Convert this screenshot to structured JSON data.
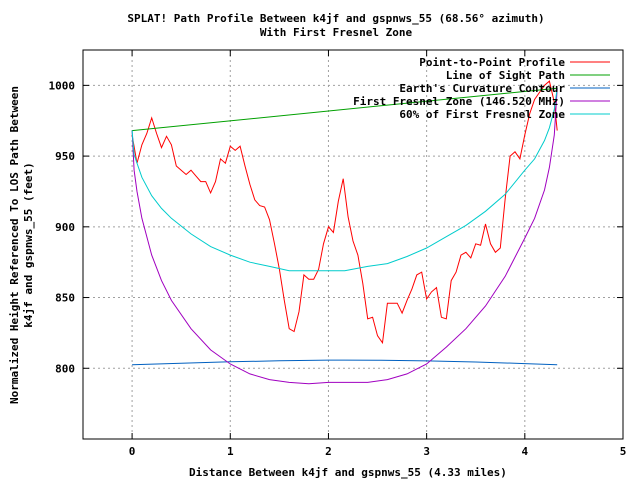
{
  "chart_data": {
    "type": "line",
    "title": "SPLAT! Path Profile Between k4jf and gspnws_55 (68.56° azimuth)",
    "subtitle": "With First Fresnel Zone",
    "xlabel": "Distance Between k4jf and gspnws_55 (4.33 miles)",
    "ylabel_line1": "Normalized Height Referenced To LOS Path Between",
    "ylabel_line2": "k4jf and gspnws_55 (feet)",
    "xlim": [
      -0.5,
      5
    ],
    "ylim": [
      750,
      1025
    ],
    "x_ticks": [
      0,
      1,
      2,
      3,
      4,
      5
    ],
    "y_ticks": [
      800,
      850,
      900,
      950,
      1000
    ],
    "grid": true,
    "legend_position": "top-right",
    "series": [
      {
        "name": "Point-to-Point Profile",
        "color": "#ff0000",
        "x": [
          0.0,
          0.05,
          0.1,
          0.15,
          0.2,
          0.25,
          0.3,
          0.35,
          0.4,
          0.45,
          0.5,
          0.55,
          0.6,
          0.65,
          0.7,
          0.75,
          0.8,
          0.85,
          0.9,
          0.95,
          1.0,
          1.05,
          1.1,
          1.15,
          1.2,
          1.25,
          1.3,
          1.35,
          1.4,
          1.45,
          1.5,
          1.55,
          1.6,
          1.65,
          1.7,
          1.75,
          1.8,
          1.85,
          1.9,
          1.95,
          2.0,
          2.05,
          2.1,
          2.15,
          2.2,
          2.25,
          2.3,
          2.35,
          2.4,
          2.45,
          2.5,
          2.55,
          2.6,
          2.65,
          2.7,
          2.75,
          2.8,
          2.85,
          2.9,
          2.95,
          3.0,
          3.05,
          3.1,
          3.15,
          3.2,
          3.25,
          3.3,
          3.35,
          3.4,
          3.45,
          3.5,
          3.55,
          3.6,
          3.65,
          3.7,
          3.75,
          3.8,
          3.85,
          3.9,
          3.95,
          4.0,
          4.05,
          4.1,
          4.15,
          4.2,
          4.25,
          4.3,
          4.33
        ],
        "y": [
          965,
          945,
          958,
          966,
          977,
          966,
          956,
          964,
          958,
          943,
          940,
          937,
          940,
          936,
          932,
          932,
          924,
          932,
          948,
          945,
          957,
          954,
          957,
          943,
          930,
          919,
          915,
          914,
          905,
          888,
          870,
          848,
          828,
          826,
          840,
          866,
          863,
          863,
          870,
          888,
          900,
          896,
          918,
          934,
          907,
          890,
          880,
          860,
          835,
          836,
          823,
          818,
          846,
          846,
          846,
          839,
          848,
          856,
          866,
          868,
          849,
          854,
          857,
          836,
          835,
          862,
          868,
          880,
          882,
          878,
          888,
          887,
          902,
          888,
          882,
          885,
          920,
          950,
          953,
          948,
          965,
          980,
          990,
          995,
          1000,
          1003,
          988,
          968
        ]
      },
      {
        "name": "Line of Sight Path",
        "color": "#00a000",
        "x": [
          0,
          4.33
        ],
        "y": [
          968,
          998
        ]
      },
      {
        "name": "Earth's Curvature Contour",
        "color": "#0060c0",
        "x": [
          0,
          0.5,
          1.0,
          1.5,
          2.0,
          2.165,
          2.5,
          3.0,
          3.5,
          4.0,
          4.33
        ],
        "y": [
          802.5,
          803.6,
          804.6,
          805.3,
          805.8,
          805.8,
          805.7,
          805.2,
          804.4,
          803.3,
          802.5
        ]
      },
      {
        "name": "First Fresnel Zone (146.520 MHz)",
        "color": "#a000c0",
        "x": [
          0,
          0.02,
          0.05,
          0.1,
          0.2,
          0.3,
          0.4,
          0.6,
          0.8,
          1.0,
          1.2,
          1.4,
          1.6,
          1.8,
          2.0,
          2.165,
          2.4,
          2.6,
          2.8,
          3.0,
          3.2,
          3.4,
          3.6,
          3.8,
          4.0,
          4.1,
          4.2,
          4.25,
          4.3,
          4.33
        ],
        "y": [
          968,
          940,
          925,
          906,
          880,
          862,
          848,
          828,
          813,
          803,
          796,
          792,
          790,
          789,
          790,
          790,
          790,
          792,
          796,
          803,
          815,
          828,
          844,
          865,
          892,
          906,
          926,
          942,
          965,
          998
        ]
      },
      {
        "name": "60% of First Fresnel Zone",
        "color": "#00cccc",
        "x": [
          0,
          0.02,
          0.05,
          0.1,
          0.2,
          0.3,
          0.4,
          0.6,
          0.8,
          1.0,
          1.2,
          1.4,
          1.6,
          1.8,
          2.0,
          2.165,
          2.4,
          2.6,
          2.8,
          3.0,
          3.2,
          3.4,
          3.6,
          3.8,
          4.0,
          4.1,
          4.2,
          4.25,
          4.3,
          4.33
        ],
        "y": [
          968,
          951,
          945,
          935,
          922,
          913,
          906,
          895,
          886,
          880,
          875,
          872,
          869,
          869,
          869,
          869,
          872,
          874,
          879,
          885,
          893,
          901,
          911,
          923,
          940,
          948,
          961,
          970,
          983,
          998
        ]
      }
    ]
  }
}
